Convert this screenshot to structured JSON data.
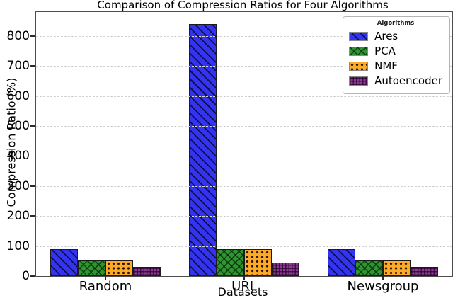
{
  "chart_data": {
    "type": "bar",
    "title": "Comparison of Compression Ratios for Four Algorithms",
    "xlabel": "Datasets",
    "ylabel": "Compression Ratio (%)",
    "categories": [
      "Random",
      "URL",
      "Newsgroup"
    ],
    "series": [
      {
        "name": "Ares",
        "color": "#3434f0",
        "hatch": "diagonal",
        "values": [
          90,
          840,
          90
        ]
      },
      {
        "name": "PCA",
        "color": "#2f9431",
        "hatch": "cross",
        "values": [
          52,
          90,
          52
        ]
      },
      {
        "name": "NMF",
        "color": "#ffa928",
        "hatch": "dots",
        "values": [
          52,
          90,
          52
        ]
      },
      {
        "name": "Autoencoder",
        "color": "#8d3a96",
        "hatch": "grid",
        "values": [
          30,
          45,
          30
        ]
      }
    ],
    "ylim": [
      0,
      880
    ],
    "yticks": [
      0,
      100,
      200,
      300,
      400,
      500,
      600,
      700,
      800
    ],
    "grid": "horizontal-dashed",
    "legend_title": "Algorithms",
    "legend_position": "upper-right"
  }
}
